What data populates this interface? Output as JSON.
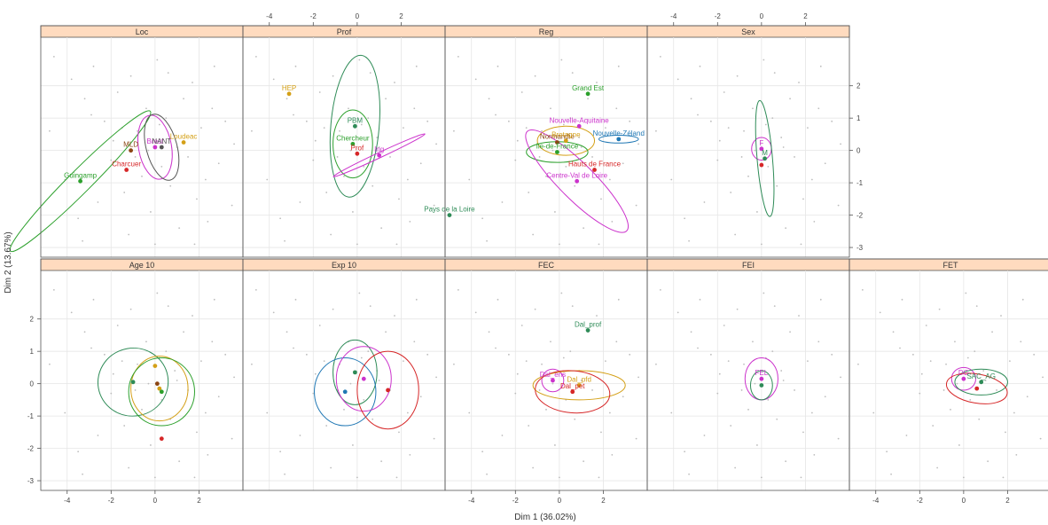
{
  "chart_data": {
    "type": "scatter",
    "xlabel": "Dim 1 (36.02%)",
    "ylabel": "Dim 2 (13.67%)",
    "xlim": [
      -5.2,
      4.0
    ],
    "ylim": [
      -3.3,
      3.5
    ],
    "x_ticks": [
      -4,
      -2,
      0,
      2
    ],
    "y_ticks": [
      -3,
      -2,
      -1,
      0,
      1,
      2
    ],
    "grid": true,
    "colors": {
      "strip": "#ffdbbf",
      "panel_border": "#555555",
      "grid": "#e6e6e6",
      "background_points": "#bdbdbd"
    },
    "panels": [
      {
        "strip": "Loc",
        "groups": [
          {
            "label": "MLD",
            "x": -1.1,
            "y": 0.0,
            "color": "#8b4513",
            "ellipse": null
          },
          {
            "label": "Charcuer",
            "x": -1.3,
            "y": -0.6,
            "color": "#d62728",
            "ellipse": null
          },
          {
            "label": "Guingamp",
            "x": -3.4,
            "y": -0.95,
            "color": "#2ca02c",
            "ellipse": {
              "rx": 4.5,
              "ry": 0.35,
              "angle": -45
            }
          },
          {
            "label": "Brest",
            "x": 0.0,
            "y": 0.1,
            "color": "#cc33cc",
            "ellipse": {
              "rx": 0.75,
              "ry": 1.0,
              "angle": -10
            }
          },
          {
            "label": "NANT",
            "x": 0.3,
            "y": 0.1,
            "color": "#555555",
            "ellipse": {
              "rx": 0.7,
              "ry": 1.05,
              "angle": -15
            }
          },
          {
            "label": "Loudeac",
            "x": 1.3,
            "y": 0.25,
            "color": "#d4a017",
            "ellipse": null
          }
        ]
      },
      {
        "strip": "Prof",
        "groups": [
          {
            "label": "HEP",
            "x": -3.1,
            "y": 1.75,
            "color": "#d4a017",
            "ellipse": null
          },
          {
            "label": "PBM",
            "x": -0.1,
            "y": 0.75,
            "color": "#2e8b57",
            "ellipse": {
              "rx": 1.1,
              "ry": 2.2,
              "angle": 5
            }
          },
          {
            "label": "Chercheur",
            "x": -0.2,
            "y": 0.2,
            "color": "#2ca02c",
            "ellipse": {
              "rx": 0.9,
              "ry": 1.05,
              "angle": 0
            }
          },
          {
            "label": "Prof",
            "x": 0.0,
            "y": -0.1,
            "color": "#d62728",
            "ellipse": null
          },
          {
            "label": "Ing",
            "x": 1.0,
            "y": -0.15,
            "color": "#cc33cc",
            "ellipse": {
              "rx": 2.3,
              "ry": 0.08,
              "angle": -25
            }
          }
        ]
      },
      {
        "strip": "Reg",
        "groups": [
          {
            "label": "Grand Est",
            "x": 1.3,
            "y": 1.75,
            "color": "#2ca02c",
            "ellipse": null
          },
          {
            "label": "Nouvelle-Aquitaine",
            "x": 0.9,
            "y": 0.75,
            "color": "#cc33cc",
            "ellipse": null
          },
          {
            "label": "Normandie",
            "x": -0.1,
            "y": 0.25,
            "color": "#8b4513",
            "ellipse": null
          },
          {
            "label": "Bretagne",
            "x": 0.3,
            "y": 0.3,
            "color": "#d4a017",
            "ellipse": {
              "rx": 1.3,
              "ry": 0.45,
              "angle": 0
            }
          },
          {
            "label": "Nouvelle-Zéland",
            "x": 2.7,
            "y": 0.35,
            "color": "#1f77b4",
            "ellipse": {
              "rx": 0.9,
              "ry": 0.12,
              "angle": 0
            }
          },
          {
            "label": "Ile-de-France",
            "x": -0.1,
            "y": -0.05,
            "color": "#2ca02c",
            "ellipse": {
              "rx": 1.4,
              "ry": 0.32,
              "angle": 0
            }
          },
          {
            "label": "Hauts de France",
            "x": 1.6,
            "y": -0.6,
            "color": "#d62728",
            "ellipse": null
          },
          {
            "label": "Centre-Val de Loire",
            "x": 0.8,
            "y": -0.95,
            "color": "#cc33cc",
            "ellipse": {
              "rx": 3.2,
              "ry": 0.55,
              "angle": 45
            }
          },
          {
            "label": "Pays de la Loire",
            "x": -5.0,
            "y": -2.0,
            "color": "#2e8b57",
            "ellipse": null
          }
        ]
      },
      {
        "strip": "Sex",
        "groups": [
          {
            "label": "F",
            "x": 0.0,
            "y": 0.05,
            "color": "#cc33cc",
            "ellipse": {
              "rx": 0.45,
              "ry": 0.35,
              "angle": 0
            }
          },
          {
            "label": "M",
            "x": 0.15,
            "y": -0.25,
            "color": "#2e8b57",
            "ellipse": {
              "rx": 0.35,
              "ry": 1.8,
              "angle": -5
            }
          },
          {
            "label": "",
            "x": 0.0,
            "y": -0.45,
            "color": "#d62728",
            "ellipse": null
          }
        ]
      },
      {
        "strip": "Age 10",
        "groups": [
          {
            "label": "",
            "x": -1.0,
            "y": 0.05,
            "color": "#2e8b57",
            "ellipse": {
              "rx": 1.6,
              "ry": 1.05,
              "angle": -10
            }
          },
          {
            "label": "",
            "x": 0.2,
            "y": -0.15,
            "color": "#d4a017",
            "ellipse": {
              "rx": 1.3,
              "ry": 1.0,
              "angle": 0
            }
          },
          {
            "label": "",
            "x": 0.3,
            "y": -0.25,
            "color": "#2ca02c",
            "ellipse": {
              "rx": 1.5,
              "ry": 1.05,
              "angle": 0
            }
          },
          {
            "label": "",
            "x": 0.0,
            "y": 0.55,
            "color": "#d4a017",
            "ellipse": null
          },
          {
            "label": "",
            "x": 0.1,
            "y": 0.0,
            "color": "#8b4513",
            "ellipse": null
          },
          {
            "label": "",
            "x": 0.3,
            "y": -1.7,
            "color": "#d62728",
            "ellipse": null
          }
        ]
      },
      {
        "strip": "Exp 10",
        "groups": [
          {
            "label": "",
            "x": -0.1,
            "y": 0.35,
            "color": "#2e8b57",
            "ellipse": {
              "rx": 1.0,
              "ry": 1.0,
              "angle": 0
            }
          },
          {
            "label": "",
            "x": -0.55,
            "y": -0.25,
            "color": "#1f77b4",
            "ellipse": {
              "rx": 1.4,
              "ry": 1.05,
              "angle": 0
            }
          },
          {
            "label": "",
            "x": 0.3,
            "y": 0.15,
            "color": "#cc33cc",
            "ellipse": {
              "rx": 1.25,
              "ry": 1.0,
              "angle": 0
            }
          },
          {
            "label": "",
            "x": 1.4,
            "y": -0.2,
            "color": "#d62728",
            "ellipse": {
              "rx": 1.4,
              "ry": 1.2,
              "angle": 0
            }
          }
        ]
      },
      {
        "strip": "FEC",
        "groups": [
          {
            "label": "Dal_prof",
            "x": 1.3,
            "y": 1.65,
            "color": "#2e8b57",
            "ellipse": null
          },
          {
            "label": "Dal_ens",
            "x": -0.3,
            "y": 0.1,
            "color": "#cc33cc",
            "ellipse": {
              "rx": 0.5,
              "ry": 0.35,
              "angle": 0
            }
          },
          {
            "label": "Dal_pfd",
            "x": 0.9,
            "y": -0.05,
            "color": "#d4a017",
            "ellipse": {
              "rx": 2.1,
              "ry": 0.45,
              "angle": 0
            }
          },
          {
            "label": "Dal_pet",
            "x": 0.6,
            "y": -0.25,
            "color": "#d62728",
            "ellipse": {
              "rx": 1.7,
              "ry": 0.65,
              "angle": 5
            }
          }
        ]
      },
      {
        "strip": "FEI",
        "groups": [
          {
            "label": "FEL",
            "x": 0.0,
            "y": 0.15,
            "color": "#cc33cc",
            "ellipse": {
              "rx": 0.75,
              "ry": 0.65,
              "angle": 0
            }
          },
          {
            "label": "",
            "x": 0.0,
            "y": -0.05,
            "color": "#2e8b57",
            "ellipse": {
              "rx": 0.5,
              "ry": 0.45,
              "angle": 0
            }
          }
        ]
      },
      {
        "strip": "FET",
        "groups": [
          {
            "label": "DG",
            "x": 0.0,
            "y": 0.15,
            "color": "#cc33cc",
            "ellipse": {
              "rx": 0.55,
              "ry": 0.35,
              "angle": 0
            }
          },
          {
            "label": "SAC_AG",
            "x": 0.8,
            "y": 0.05,
            "color": "#2e8b57",
            "ellipse": {
              "rx": 1.2,
              "ry": 0.4,
              "angle": 0
            }
          },
          {
            "label": "",
            "x": 0.6,
            "y": -0.15,
            "color": "#d62728",
            "ellipse": {
              "rx": 1.4,
              "ry": 0.45,
              "angle": 10
            }
          }
        ]
      }
    ],
    "background_points": [
      [
        -4.6,
        2.9
      ],
      [
        -3.8,
        2.2
      ],
      [
        -3.2,
        1.6
      ],
      [
        -2.8,
        2.6
      ],
      [
        -2.3,
        0.9
      ],
      [
        -2.0,
        -0.3
      ],
      [
        -1.7,
        1.8
      ],
      [
        -1.4,
        -1.3
      ],
      [
        -1.1,
        2.3
      ],
      [
        -0.8,
        0.6
      ],
      [
        -0.6,
        -0.8
      ],
      [
        -0.4,
        1.3
      ],
      [
        -0.2,
        -1.9
      ],
      [
        0.1,
        2.8
      ],
      [
        0.3,
        -0.5
      ],
      [
        0.5,
        1.0
      ],
      [
        0.7,
        -1.1
      ],
      [
        0.9,
        0.4
      ],
      [
        1.1,
        -2.4
      ],
      [
        1.3,
        1.6
      ],
      [
        1.5,
        -0.2
      ],
      [
        1.7,
        2.1
      ],
      [
        1.9,
        -1.5
      ],
      [
        2.1,
        0.7
      ],
      [
        2.3,
        -0.9
      ],
      [
        2.6,
        1.3
      ],
      [
        2.9,
        -0.4
      ],
      [
        3.2,
        0.9
      ],
      [
        3.5,
        -1.7
      ],
      [
        -4.1,
        -0.9
      ],
      [
        -3.5,
        -2.1
      ],
      [
        -2.6,
        -1.6
      ],
      [
        -1.9,
        0.3
      ],
      [
        -1.2,
        -2.6
      ],
      [
        -0.3,
        0.0
      ],
      [
        0.6,
        2.4
      ],
      [
        1.8,
        -2.9
      ],
      [
        2.7,
        2.6
      ],
      [
        3.6,
        0.2
      ],
      [
        -4.8,
        0.6
      ],
      [
        -0.9,
        -0.2
      ],
      [
        0.2,
        0.8
      ],
      [
        1.0,
        0.1
      ],
      [
        -1.5,
        0.7
      ],
      [
        2.4,
        -2.2
      ],
      [
        -2.9,
        1.1
      ],
      [
        -3.3,
        -2.8
      ],
      [
        0.0,
        -2.9
      ]
    ]
  }
}
